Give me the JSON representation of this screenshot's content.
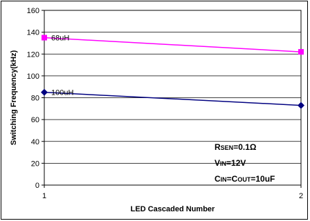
{
  "chart_data": {
    "type": "line",
    "x": [
      1,
      2
    ],
    "xlim": [
      1,
      2
    ],
    "ylim": [
      0,
      160
    ],
    "yticks": [
      0,
      20,
      40,
      60,
      80,
      100,
      120,
      140,
      160
    ],
    "xticks": [
      "1",
      "2"
    ],
    "xlabel": "LED Cascaded Number",
    "ylabel": "Switching Frequency(kHz)",
    "grid": "horizontal",
    "series": [
      {
        "name": "68uH",
        "values": [
          135,
          122
        ],
        "color": "#ff00ff",
        "marker": "square"
      },
      {
        "name": "100uH",
        "values": [
          85,
          73
        ],
        "color": "#000080",
        "marker": "diamond"
      }
    ],
    "annotations": [
      {
        "big1": "R",
        "small": "SEN",
        "big2": "=0.1Ω"
      },
      {
        "big1": "V",
        "small": "IN",
        "big2": "=12V"
      },
      {
        "big1": "C",
        "small": "IN",
        "big2": "=C",
        "small2": "OUT",
        "big3": "=10uF"
      }
    ]
  }
}
